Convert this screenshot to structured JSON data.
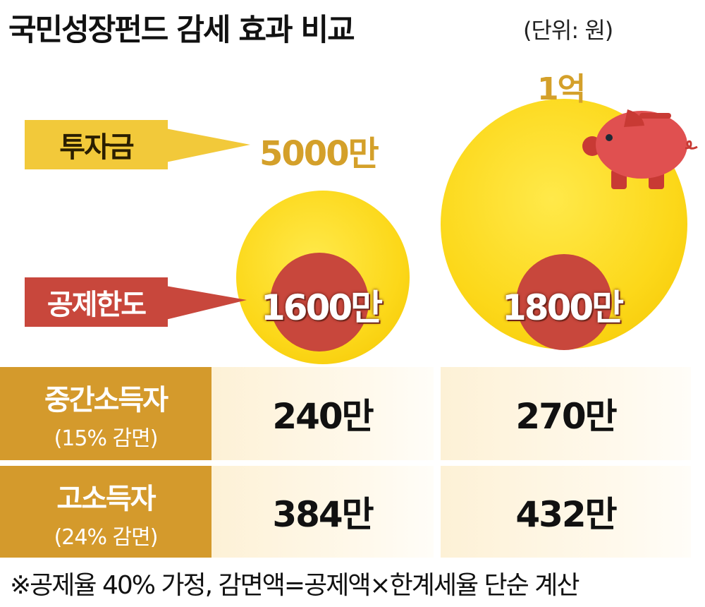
{
  "header": {
    "title": "국민성장펀드 감세 효과 비교",
    "unit": "(단위: 원)"
  },
  "labels": {
    "investment": "투자금",
    "deduction_limit": "공제한도"
  },
  "chart_data": {
    "type": "bubble",
    "columns": [
      {
        "investment": "5000만",
        "investment_value": 50000000,
        "deduction_limit": "1600만",
        "deduction_value": 16000000,
        "middle_income": "240만",
        "high_income": "384만"
      },
      {
        "investment": "1억",
        "investment_value": 100000000,
        "deduction_limit": "1800만",
        "deduction_value": 18000000,
        "middle_income": "270만",
        "high_income": "432만"
      }
    ],
    "rows": [
      {
        "label": "중간소득자",
        "sub": "(15% 감면)"
      },
      {
        "label": "고소득자",
        "sub": "(24% 감면)"
      }
    ]
  },
  "footnote": "※공제율 40% 가정, 감면액=공제액×한계세율 단순 계산",
  "colors": {
    "gold": "#d49a2c",
    "red": "#c8473c",
    "yellow": "#fcd81a",
    "tag_yellow": "#f2c93a"
  },
  "icons": {
    "piggy": "piggy-bank-icon"
  }
}
